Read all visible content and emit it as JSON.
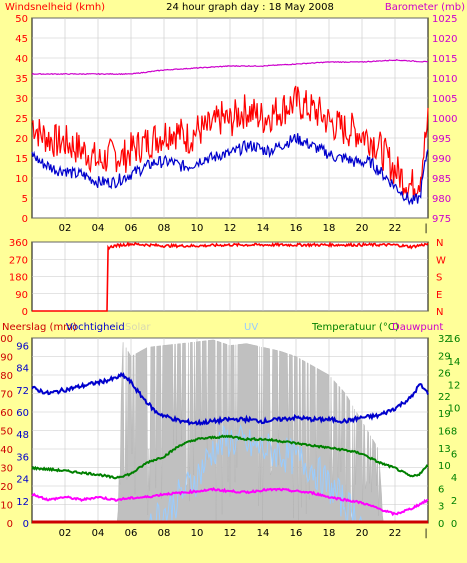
{
  "title": "24 hour graph day : 18 May 2008",
  "colors": {
    "background": "#ffff99",
    "plot": "#ffffff",
    "wind_gust": "#ff0000",
    "wind_avg": "#0000cc",
    "barometer": "#cc00cc",
    "direction": "#ff0000",
    "humidity": "#0000cc",
    "temperature": "#008000",
    "dewpoint": "#ff00ff",
    "solar": "#c0c0c0",
    "uv": "#99ccff",
    "rain": "#cc0000"
  },
  "chart_data": [
    {
      "type": "line",
      "left_axis_label": "Windsnelheid (kmh)",
      "right_axis_label": "Barometer (mb)",
      "x_tick_labels": [
        "02",
        "04",
        "06",
        "08",
        "10",
        "12",
        "14",
        "16",
        "18",
        "20",
        "22"
      ],
      "y_left_ticks": [
        0,
        5,
        10,
        15,
        20,
        25,
        30,
        35,
        40,
        45,
        50
      ],
      "y_right_ticks": [
        975,
        980,
        985,
        990,
        995,
        1000,
        1005,
        1010,
        1015,
        1020,
        1025
      ],
      "ylim_left": [
        0,
        50
      ],
      "ylim_right": [
        975,
        1025
      ],
      "grid": true,
      "series": [
        {
          "name": "Windvlaag",
          "axis": "left",
          "x": [
            0,
            0.5,
            1,
            1.5,
            2,
            2.5,
            3,
            3.5,
            4,
            4.5,
            5,
            5.5,
            6,
            6.5,
            7,
            7.5,
            8,
            8.5,
            9,
            9.5,
            10,
            10.5,
            11,
            11.5,
            12,
            12.5,
            13,
            13.5,
            14,
            14.5,
            15,
            15.5,
            16,
            16.5,
            17,
            17.5,
            18,
            18.5,
            19,
            19.5,
            20,
            20.5,
            21,
            21.5,
            22,
            22.5,
            23,
            23.5,
            24
          ],
          "values": [
            24,
            21,
            20,
            19,
            19,
            18,
            17,
            16,
            14,
            15,
            16,
            15,
            17,
            18,
            19,
            20,
            21,
            22,
            21,
            20,
            22,
            22,
            23,
            25,
            24,
            26,
            27,
            26,
            25,
            26,
            27,
            28,
            29,
            28,
            27,
            26,
            24,
            23,
            22,
            22,
            21,
            20,
            18,
            15,
            12,
            10,
            8,
            10,
            24
          ]
        },
        {
          "name": "Windsnelheid",
          "axis": "left",
          "x": [
            0,
            0.5,
            1,
            1.5,
            2,
            2.5,
            3,
            3.5,
            4,
            4.5,
            5,
            5.5,
            6,
            6.5,
            7,
            7.5,
            8,
            8.5,
            9,
            9.5,
            10,
            10.5,
            11,
            11.5,
            12,
            12.5,
            13,
            13.5,
            14,
            14.5,
            15,
            15.5,
            16,
            16.5,
            17,
            17.5,
            18,
            18.5,
            19,
            19.5,
            20,
            20.5,
            21,
            21.5,
            22,
            22.5,
            23,
            23.5,
            24
          ],
          "values": [
            16,
            14,
            13,
            12,
            12,
            11,
            11,
            10,
            9,
            9,
            9,
            10,
            11,
            12,
            13,
            14,
            14,
            14,
            13,
            13,
            14,
            15,
            15,
            16,
            16,
            17,
            18,
            18,
            17,
            17,
            18,
            19,
            20,
            19,
            18,
            17,
            16,
            15,
            15,
            14,
            14,
            14,
            12,
            10,
            8,
            6,
            4,
            5,
            18
          ]
        },
        {
          "name": "Barometer",
          "axis": "right",
          "x": [
            0,
            2,
            4,
            6,
            8,
            10,
            12,
            14,
            16,
            18,
            20,
            22,
            24
          ],
          "values": [
            1011,
            1011,
            1011,
            1011,
            1012,
            1012.5,
            1013,
            1013,
            1013.5,
            1014,
            1014,
            1014.5,
            1014
          ]
        }
      ]
    },
    {
      "type": "line",
      "y_left_ticks": [
        0,
        90,
        180,
        270,
        360
      ],
      "y_right_labels": [
        "N",
        "W",
        "S",
        "E",
        "N"
      ],
      "ylim": [
        0,
        360
      ],
      "x_tick_labels": [],
      "series": [
        {
          "name": "Windrichting",
          "x": [
            0,
            4.6,
            4.6,
            5,
            6,
            8,
            10,
            12,
            14,
            16,
            18,
            20,
            22,
            23,
            24
          ],
          "values": [
            0,
            0,
            330,
            340,
            350,
            340,
            340,
            345,
            345,
            345,
            345,
            345,
            345,
            335,
            350
          ]
        }
      ]
    },
    {
      "type": "line",
      "labels": [
        "Neerslag (mm)",
        "Vochtigheid",
        "Solar",
        "UV",
        "Temperatuur (°C)",
        "Dauwpunt"
      ],
      "x_tick_labels": [
        "02",
        "04",
        "06",
        "08",
        "10",
        "12",
        "14",
        "16",
        "18",
        "20",
        "22"
      ],
      "y_left_outer_ticks": [
        0,
        10,
        20,
        30,
        40,
        50,
        60,
        70,
        80,
        90,
        100
      ],
      "y_left_inner_ticks": [
        0,
        12,
        24,
        36,
        48,
        60,
        72,
        84,
        96
      ],
      "y_right_inner_ticks": [
        0,
        3,
        6,
        10,
        13,
        16,
        19,
        22,
        26,
        29,
        32
      ],
      "y_right_outer_ticks": [
        0,
        2,
        4,
        6,
        8,
        10,
        12,
        14,
        16
      ],
      "ylim_humidity": [
        0,
        100
      ],
      "ylim_temperature": [
        0,
        32
      ],
      "series": [
        {
          "name": "Vochtigheid",
          "axis": "humidity",
          "x": [
            0,
            1,
            2,
            3,
            4,
            5,
            5.5,
            6,
            6.5,
            7,
            7.5,
            8,
            9,
            10,
            11,
            12,
            13,
            14,
            15,
            16,
            17,
            18,
            19,
            20,
            21,
            22,
            23,
            23.5,
            24
          ],
          "values": [
            73,
            70,
            72,
            74,
            76,
            78,
            80,
            76,
            70,
            65,
            60,
            58,
            55,
            54,
            55,
            56,
            56,
            55,
            56,
            57,
            56,
            56,
            55,
            57,
            58,
            62,
            68,
            75,
            70
          ]
        },
        {
          "name": "Temperatuur",
          "axis": "temperature",
          "x": [
            0,
            1,
            2,
            3,
            4,
            5,
            6,
            7,
            8,
            9,
            10,
            11,
            12,
            13,
            14,
            15,
            16,
            17,
            18,
            19,
            20,
            21,
            22,
            23,
            23.5,
            24
          ],
          "values": [
            9.5,
            9.3,
            9,
            8.7,
            8.4,
            7.8,
            8.5,
            10.5,
            11.5,
            13.5,
            14.5,
            14.8,
            15,
            14.5,
            14.5,
            14.2,
            13.8,
            13.4,
            13,
            12.6,
            12,
            10.5,
            9.5,
            8,
            8.5,
            10
          ]
        },
        {
          "name": "Dauwpunt",
          "axis": "temperature",
          "x": [
            0,
            1,
            2,
            3,
            4,
            5,
            6,
            7,
            8,
            9,
            10,
            11,
            12,
            13,
            14,
            15,
            16,
            17,
            18,
            19,
            20,
            21,
            22,
            23,
            24
          ],
          "values": [
            5,
            4,
            4.5,
            4,
            4.5,
            4,
            4.3,
            4.5,
            5,
            5.2,
            5.5,
            5.8,
            5.5,
            5.3,
            5.7,
            5.8,
            5.5,
            5.2,
            4.5,
            4,
            3.5,
            2.5,
            1.5,
            2.5,
            4
          ]
        },
        {
          "name": "Solar",
          "axis": "humidity",
          "x": [
            0,
            5.2,
            5.5,
            6,
            7,
            8,
            9,
            10,
            11,
            12,
            13,
            14,
            15,
            16,
            17,
            18,
            19,
            20,
            21,
            21.3,
            24
          ],
          "values": [
            0,
            0,
            98,
            90,
            95,
            96,
            97,
            98,
            99,
            96,
            97,
            95,
            93,
            90,
            85,
            80,
            70,
            55,
            40,
            0,
            0
          ]
        },
        {
          "name": "UV",
          "axis": "humidity",
          "x": [
            0,
            7,
            8,
            9,
            10,
            11,
            12,
            13,
            14,
            15,
            16,
            17,
            18,
            19,
            20,
            24
          ],
          "values": [
            0,
            0,
            5,
            15,
            25,
            40,
            45,
            42,
            40,
            38,
            35,
            30,
            20,
            10,
            0,
            0
          ]
        },
        {
          "name": "Neerslag",
          "axis": "humidity",
          "x": [
            0,
            24
          ],
          "values": [
            0,
            0
          ]
        }
      ]
    }
  ]
}
